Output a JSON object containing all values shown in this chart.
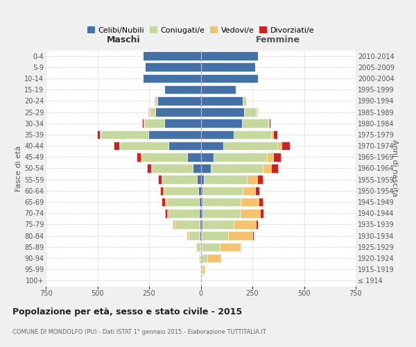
{
  "age_groups": [
    "100+",
    "95-99",
    "90-94",
    "85-89",
    "80-84",
    "75-79",
    "70-74",
    "65-69",
    "60-64",
    "55-59",
    "50-54",
    "45-49",
    "40-44",
    "35-39",
    "30-34",
    "25-29",
    "20-24",
    "15-19",
    "10-14",
    "5-9",
    "0-4"
  ],
  "birth_years": [
    "≤ 1914",
    "1915-1919",
    "1920-1924",
    "1925-1929",
    "1930-1934",
    "1935-1939",
    "1940-1944",
    "1945-1949",
    "1950-1954",
    "1955-1959",
    "1960-1964",
    "1965-1969",
    "1970-1974",
    "1975-1979",
    "1980-1984",
    "1985-1989",
    "1990-1994",
    "1995-1999",
    "2000-2004",
    "2005-2009",
    "2010-2014"
  ],
  "male": {
    "celibe": [
      0,
      1,
      2,
      3,
      4,
      6,
      7,
      9,
      12,
      18,
      40,
      65,
      155,
      255,
      175,
      220,
      210,
      175,
      280,
      270,
      280
    ],
    "coniugato": [
      0,
      2,
      8,
      18,
      55,
      115,
      145,
      155,
      165,
      168,
      195,
      220,
      235,
      228,
      100,
      28,
      10,
      2,
      0,
      0,
      0
    ],
    "vedovo": [
      0,
      0,
      2,
      5,
      10,
      10,
      12,
      10,
      5,
      5,
      5,
      5,
      5,
      5,
      2,
      2,
      0,
      0,
      0,
      0,
      0
    ],
    "divorziato": [
      0,
      0,
      0,
      0,
      0,
      5,
      8,
      15,
      15,
      15,
      20,
      20,
      25,
      15,
      5,
      5,
      2,
      0,
      0,
      0,
      0
    ]
  },
  "female": {
    "nubile": [
      0,
      1,
      3,
      5,
      5,
      8,
      8,
      10,
      10,
      15,
      50,
      62,
      108,
      158,
      198,
      210,
      202,
      168,
      278,
      262,
      278
    ],
    "coniugata": [
      2,
      4,
      28,
      88,
      128,
      152,
      182,
      182,
      192,
      208,
      252,
      258,
      262,
      182,
      128,
      58,
      18,
      4,
      0,
      0,
      0
    ],
    "vedova": [
      2,
      14,
      62,
      98,
      118,
      108,
      98,
      88,
      62,
      52,
      38,
      32,
      22,
      12,
      4,
      2,
      2,
      0,
      0,
      0,
      0
    ],
    "divorziata": [
      0,
      0,
      2,
      2,
      5,
      8,
      15,
      20,
      20,
      24,
      34,
      34,
      38,
      18,
      8,
      4,
      2,
      0,
      0,
      0,
      0
    ]
  },
  "colors": {
    "celibe": "#4472a8",
    "coniugato": "#c5d89e",
    "vedovo": "#f5c36e",
    "divorziato": "#cc2222"
  },
  "title": "Popolazione per età, sesso e stato civile - 2015",
  "subtitle": "COMUNE DI MONDOLFO (PU) - Dati ISTAT 1° gennaio 2015 - Elaborazione TUTTITALIA.IT",
  "label_maschi": "Maschi",
  "label_femmine": "Femmine",
  "ylabel_left": "Fasce di età",
  "ylabel_right": "Anni di nascita",
  "xlim": 750,
  "bg_color": "#f0f0f0",
  "plot_bg": "#ffffff",
  "grid_color": "#cccccc",
  "legend_labels": [
    "Celibi/Nubili",
    "Coniugati/e",
    "Vedovi/e",
    "Divorziati/e"
  ]
}
